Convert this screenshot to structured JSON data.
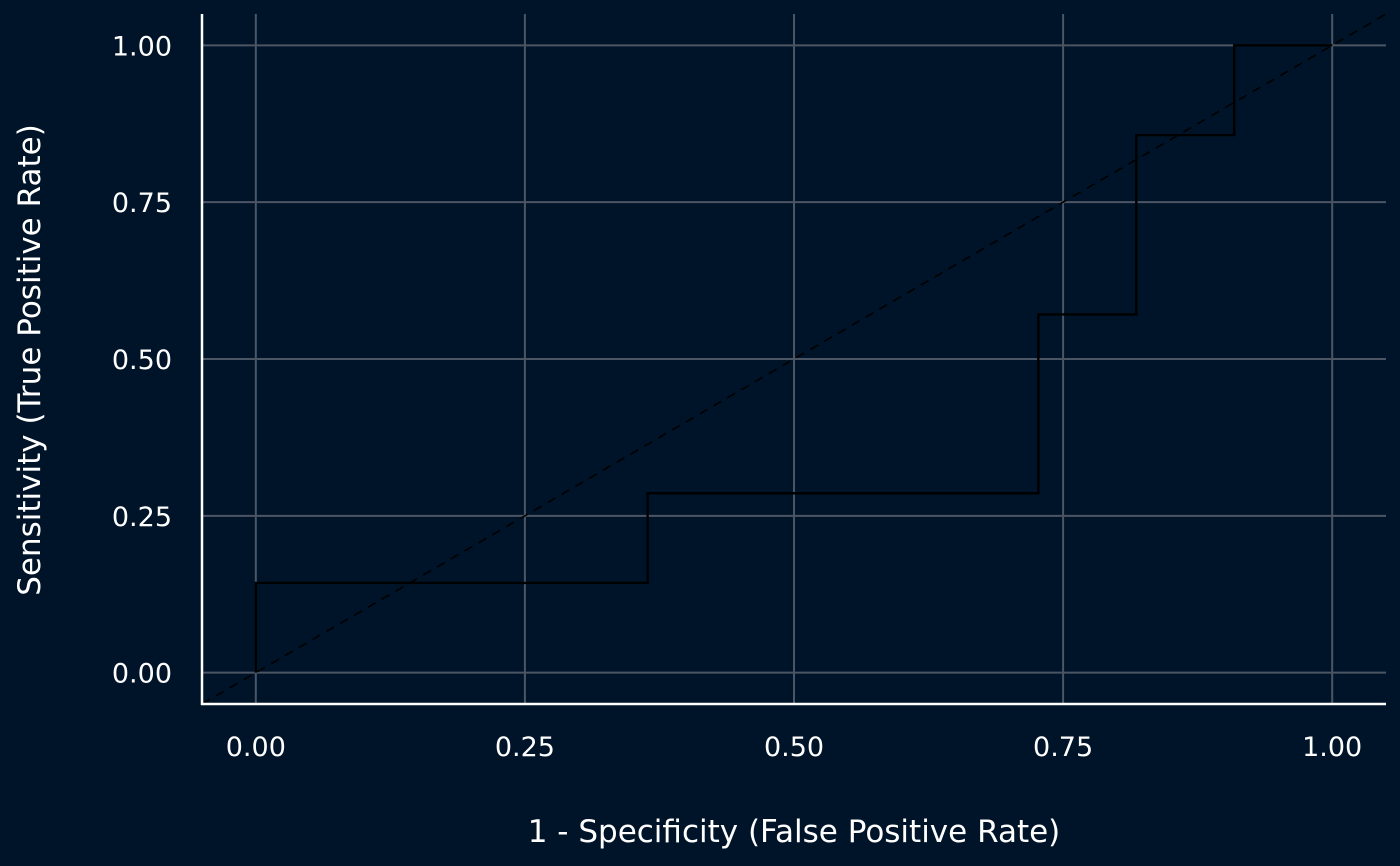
{
  "chart_data": {
    "type": "line",
    "title": "",
    "xlabel": "1 - Specificity (False Positive Rate)",
    "ylabel": "Sensitivity (True Positive Rate)",
    "xlim": [
      -0.05,
      1.05
    ],
    "ylim": [
      -0.05,
      1.05
    ],
    "x_ticks": [
      0,
      0.25,
      0.5,
      0.75,
      1
    ],
    "y_ticks": [
      0,
      0.25,
      0.5,
      0.75,
      1
    ],
    "x_tick_labels": [
      "0.00",
      "0.25",
      "0.50",
      "0.75",
      "1.00"
    ],
    "y_tick_labels": [
      "0.00",
      "0.25",
      "0.50",
      "0.75",
      "1.00"
    ],
    "grid": true,
    "legend": "none",
    "series": [
      {
        "style": "step",
        "color": "#000000",
        "x": [
          0,
          0,
          0.364,
          0.364,
          0.727,
          0.727,
          0.818,
          0.818,
          0.909,
          0.909,
          1
        ],
        "y": [
          0,
          0.143,
          0.143,
          0.286,
          0.286,
          0.571,
          0.571,
          0.857,
          0.857,
          1,
          1
        ]
      }
    ],
    "reference_line": {
      "style": "dashed",
      "color": "#000000",
      "x": [
        -0.05,
        1.05
      ],
      "y": [
        -0.05,
        1.05
      ]
    },
    "colors": {
      "background": "#001429",
      "grid": "#4b5563",
      "axis": "#ffffff",
      "text": "#ffffff"
    }
  }
}
